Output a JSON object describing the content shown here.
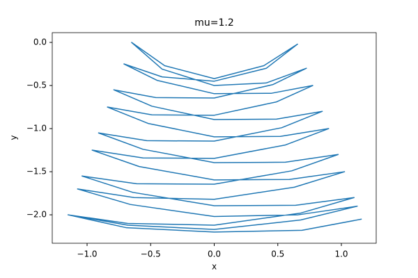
{
  "chart_data": {
    "type": "line",
    "title": "mu=1.2",
    "x_label": "x",
    "y_label": "y",
    "xlim": [
      -1.274,
      1.274
    ],
    "ylim": [
      -2.33,
      0.113
    ],
    "xticks": [
      {
        "value": -1.0,
        "label": "−1.0"
      },
      {
        "value": -0.5,
        "label": "−0.5"
      },
      {
        "value": 0.0,
        "label": "0.0"
      },
      {
        "value": 0.5,
        "label": "0.5"
      },
      {
        "value": 1.0,
        "label": "1.0"
      }
    ],
    "yticks": [
      {
        "value": 0.0,
        "label": "0.0"
      },
      {
        "value": -0.5,
        "label": "−0.5"
      },
      {
        "value": -1.0,
        "label": "−1.0"
      },
      {
        "value": -1.5,
        "label": "−1.5"
      },
      {
        "value": -2.0,
        "label": "−2.0"
      }
    ],
    "grid": false,
    "series": [
      {
        "color": "#1f77b4",
        "x": [
          -1.15,
          -0.68,
          0,
          0.68,
          1.125,
          0.66,
          0,
          -0.66,
          -1.075,
          -0.63,
          0,
          0.63,
          1.025,
          0.59,
          0,
          -0.59,
          -0.96,
          -0.56,
          0,
          0.56,
          0.9,
          0.52,
          0,
          -0.52,
          -0.84,
          -0.49,
          0,
          0.49,
          0.775,
          0.45,
          0,
          -0.45,
          -0.71,
          -0.41,
          0,
          0.41,
          0.655,
          0.39,
          0,
          -0.39,
          -0.65,
          -0.41,
          0,
          0.41,
          0.725,
          0.46,
          0,
          -0.46,
          -0.79,
          -0.49,
          0,
          0.49,
          0.85,
          0.53,
          0,
          -0.53,
          -0.91,
          -0.56,
          0,
          0.56,
          0.975,
          0.61,
          0,
          -0.61,
          -1.04,
          -0.64,
          0,
          0.64,
          1.1,
          0.68,
          0,
          -0.68,
          -1.15,
          -0.69,
          0,
          0.69,
          1.16
        ],
        "values": [
          -2.0,
          -2.12,
          -2.17,
          -2.06,
          -1.9,
          -2.0,
          -2.02,
          -1.88,
          -1.7,
          -1.8,
          -1.82,
          -1.68,
          -1.5,
          -1.59,
          -1.595,
          -1.44,
          -1.25,
          -1.34,
          -1.345,
          -1.19,
          -1.0,
          -1.09,
          -1.095,
          -0.94,
          -0.75,
          -0.84,
          -0.845,
          -0.69,
          -0.5,
          -0.59,
          -0.595,
          -0.44,
          -0.25,
          -0.4,
          -0.45,
          -0.3,
          -0.02,
          -0.27,
          -0.42,
          -0.27,
          0.0,
          -0.31,
          -0.5,
          -0.47,
          -0.3,
          -0.49,
          -0.645,
          -0.64,
          -0.55,
          -0.74,
          -0.895,
          -0.89,
          -0.8,
          -0.99,
          -1.145,
          -1.14,
          -1.05,
          -1.24,
          -1.395,
          -1.39,
          -1.3,
          -1.49,
          -1.645,
          -1.64,
          -1.55,
          -1.74,
          -1.895,
          -1.89,
          -1.8,
          -1.98,
          -2.12,
          -2.1,
          -2.0,
          -2.15,
          -2.2,
          -2.18,
          -2.05
        ]
      }
    ]
  }
}
